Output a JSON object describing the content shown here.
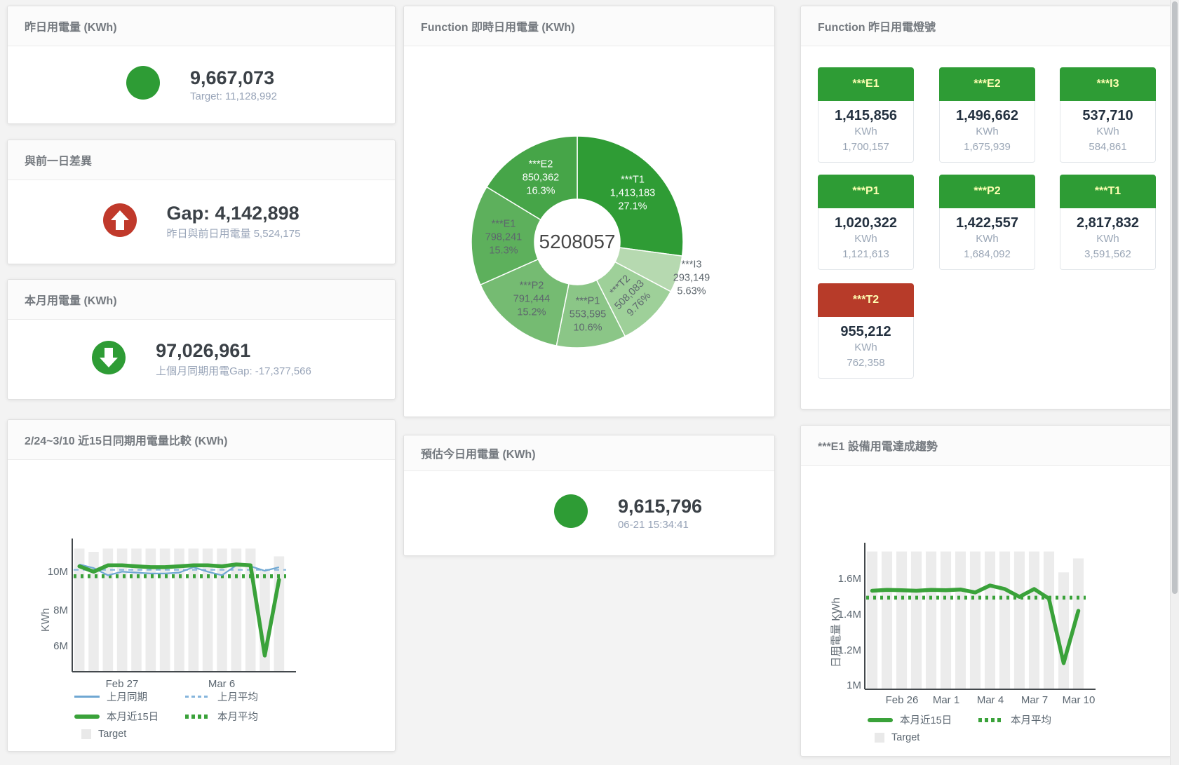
{
  "colors": {
    "green": "#2e9c35",
    "red": "#c0392b",
    "red_tile": "#b73b29",
    "tile_label": "#ffffb3",
    "blue_line": "#6fa7d2",
    "blue_dash": "#85b5dc",
    "green_line": "#3aa23a",
    "target_bar": "#ececec",
    "axis_line": "#43484c"
  },
  "panels": {
    "yesterday": {
      "title": "昨日用電量 (KWh)",
      "value": "9,667,073",
      "subtitle": "Target: 11,128,992",
      "indicator": "green-circle"
    },
    "gap": {
      "title": "與前一日差異",
      "value": "Gap: 4,142,898",
      "subtitle": "昨日與前日用電量 5,524,175",
      "indicator": "red-circle-arrow-up"
    },
    "month": {
      "title": "本月用電量 (KWh)",
      "value": "97,026,961",
      "subtitle": "上個月同期用電Gap: -17,377,566",
      "indicator": "green-circle-arrow-down"
    },
    "estimate": {
      "title": "預估今日用電量 (KWh)",
      "value": "9,615,796",
      "subtitle": "06-21 15:34:41",
      "indicator": "green-circle"
    },
    "donut": {
      "title": "Function 即時日用電量 (KWh)",
      "chart_data": {
        "type": "pie",
        "center_label": "5208057",
        "slices": [
          {
            "name": "***T1",
            "value": "1,413,183",
            "pct": "27.1%",
            "pct_num": 27.1,
            "color": "#2f9c35"
          },
          {
            "name": "***I3",
            "value": "293,149",
            "pct": "5.63%",
            "pct_num": 5.63,
            "color": "#b6d9b0"
          },
          {
            "name": "***T2",
            "value": "508,083",
            "pct": "9.76%",
            "pct_num": 9.76,
            "color": "#9ed099"
          },
          {
            "name": "***P1",
            "value": "553,595",
            "pct": "10.6%",
            "pct_num": 10.6,
            "color": "#8bc687"
          },
          {
            "name": "***P2",
            "value": "791,444",
            "pct": "15.2%",
            "pct_num": 15.2,
            "color": "#75bb72"
          },
          {
            "name": "***E1",
            "value": "798,241",
            "pct": "15.3%",
            "pct_num": 15.3,
            "color": "#5db05c"
          },
          {
            "name": "***E2",
            "value": "850,362",
            "pct": "16.3%",
            "pct_num": 16.3,
            "color": "#46a548"
          }
        ]
      }
    },
    "lamp": {
      "title": "Function 昨日用電燈號",
      "unit_label": "KWh",
      "tiles": [
        {
          "label": "***E1",
          "value": "1,415,856",
          "target": "1,700,157",
          "status": "green"
        },
        {
          "label": "***E2",
          "value": "1,496,662",
          "target": "1,675,939",
          "status": "green"
        },
        {
          "label": "***I3",
          "value": "537,710",
          "target": "584,861",
          "status": "green"
        },
        {
          "label": "***P1",
          "value": "1,020,322",
          "target": "1,121,613",
          "status": "green"
        },
        {
          "label": "***P2",
          "value": "1,422,557",
          "target": "1,684,092",
          "status": "green"
        },
        {
          "label": "***T1",
          "value": "2,817,832",
          "target": "3,591,562",
          "status": "green"
        },
        {
          "label": "***T2",
          "value": "955,212",
          "target": "762,358",
          "status": "red"
        }
      ]
    },
    "compare": {
      "title": "2/24~3/10 近15日同期用電量比較 (KWh)",
      "chart_data": {
        "type": "line",
        "ylabel": "KWh",
        "ylim_M": [
          4.6,
          11.6
        ],
        "grid": false,
        "legend_position": "bottom-left",
        "x_days": [
          "2/24",
          "2/25",
          "2/26",
          "2/27",
          "2/28",
          "3/1",
          "3/2",
          "3/3",
          "3/4",
          "3/5",
          "3/6",
          "3/7",
          "3/8",
          "3/9",
          "3/10"
        ],
        "yticks": [
          {
            "label": "10M",
            "value_M": 10
          },
          {
            "label": "8M",
            "value_M": 8
          },
          {
            "label": "6M",
            "value_M": 6
          }
        ],
        "xticks": [
          {
            "label": "Feb 27",
            "index": 3
          },
          {
            "label": "Mar 6",
            "index": 10
          }
        ],
        "target_bars": {
          "name": "Target",
          "color": "#ececec",
          "values_M": [
            11.43,
            11.25,
            11.43,
            11.43,
            11.43,
            11.43,
            11.43,
            11.43,
            11.43,
            11.43,
            11.43,
            11.43,
            11.43,
            10.2,
            11.0
          ]
        },
        "series": [
          {
            "name": "上月同期",
            "style": "solid-thin",
            "color": "#6fa7d2",
            "values_M": [
              10.55,
              10.35,
              9.95,
              10.15,
              10.1,
              10.05,
              10.05,
              10.1,
              10.4,
              10.15,
              9.95,
              10.5,
              10.45,
              10.2,
              10.4
            ]
          },
          {
            "name": "上月平均",
            "style": "dashed",
            "color": "#85b5dc",
            "constant_M": 10.25
          },
          {
            "name": "本月近15日",
            "style": "solid-thick",
            "color": "#3aa23a",
            "values_M": [
              10.45,
              10.15,
              10.5,
              10.5,
              10.45,
              10.4,
              10.4,
              10.45,
              10.5,
              10.5,
              10.45,
              10.55,
              10.5,
              5.5,
              9.7
            ]
          },
          {
            "name": "本月平均",
            "style": "dotted",
            "color": "#3aa23a",
            "constant_M": 9.9
          }
        ]
      }
    },
    "trend": {
      "title": "***E1 設備用電達成趨勢",
      "chart_data": {
        "type": "line",
        "ylabel": "日用電量 KWh",
        "ylim_M": [
          0.98,
          1.78
        ],
        "grid": false,
        "legend_position": "bottom-left",
        "x_days": [
          "2/24",
          "2/25",
          "2/26",
          "2/27",
          "2/28",
          "3/1",
          "3/2",
          "3/3",
          "3/4",
          "3/5",
          "3/6",
          "3/7",
          "3/8",
          "3/9",
          "3/10"
        ],
        "yticks": [
          {
            "label": "1.6M",
            "value_M": 1.6
          },
          {
            "label": "1.4M",
            "value_M": 1.4
          },
          {
            "label": "1.2M",
            "value_M": 1.2
          },
          {
            "label": "1M",
            "value_M": 1.0
          }
        ],
        "xticks": [
          {
            "label": "Feb 26",
            "index": 2
          },
          {
            "label": "Mar 1",
            "index": 5
          },
          {
            "label": "Mar 4",
            "index": 8
          },
          {
            "label": "Mar 7",
            "index": 11
          },
          {
            "label": "Mar 10",
            "index": 14
          }
        ],
        "target_bars": {
          "name": "Target",
          "color": "#ececec",
          "values_M": [
            1.77,
            1.77,
            1.77,
            1.77,
            1.77,
            1.77,
            1.77,
            1.77,
            1.77,
            1.77,
            1.77,
            1.77,
            1.77,
            1.65,
            1.73
          ]
        },
        "series": [
          {
            "name": "本月近15日",
            "style": "solid-thick",
            "color": "#3aa23a",
            "values_M": [
              1.545,
              1.55,
              1.548,
              1.545,
              1.55,
              1.548,
              1.552,
              1.535,
              1.575,
              1.555,
              1.51,
              1.555,
              1.5,
              1.13,
              1.43
            ]
          },
          {
            "name": "本月平均",
            "style": "dotted",
            "color": "#3aa23a",
            "constant_M": 1.505
          }
        ]
      }
    }
  }
}
